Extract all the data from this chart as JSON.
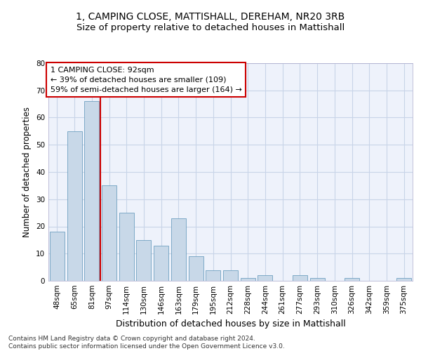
{
  "title": "1, CAMPING CLOSE, MATTISHALL, DEREHAM, NR20 3RB",
  "subtitle": "Size of property relative to detached houses in Mattishall",
  "xlabel": "Distribution of detached houses by size in Mattishall",
  "ylabel": "Number of detached properties",
  "categories": [
    "48sqm",
    "65sqm",
    "81sqm",
    "97sqm",
    "114sqm",
    "130sqm",
    "146sqm",
    "163sqm",
    "179sqm",
    "195sqm",
    "212sqm",
    "228sqm",
    "244sqm",
    "261sqm",
    "277sqm",
    "293sqm",
    "310sqm",
    "326sqm",
    "342sqm",
    "359sqm",
    "375sqm"
  ],
  "values": [
    18,
    55,
    66,
    35,
    25,
    15,
    13,
    23,
    9,
    4,
    4,
    1,
    2,
    0,
    2,
    1,
    0,
    1,
    0,
    0,
    1
  ],
  "bar_color": "#c8d8e8",
  "bar_edge_color": "#6fa0c0",
  "vline_x": 2.5,
  "vline_color": "#cc0000",
  "annotation_line1": "1 CAMPING CLOSE: 92sqm",
  "annotation_line2": "← 39% of detached houses are smaller (109)",
  "annotation_line3": "59% of semi-detached houses are larger (164) →",
  "annotation_box_color": "#cc0000",
  "ylim": [
    0,
    80
  ],
  "yticks": [
    0,
    10,
    20,
    30,
    40,
    50,
    60,
    70,
    80
  ],
  "grid_color": "#c8d4e8",
  "background_color": "#eef2fb",
  "footer_text": "Contains HM Land Registry data © Crown copyright and database right 2024.\nContains public sector information licensed under the Open Government Licence v3.0.",
  "title_fontsize": 10,
  "subtitle_fontsize": 9.5,
  "xlabel_fontsize": 9,
  "ylabel_fontsize": 8.5,
  "tick_fontsize": 7.5,
  "annotation_fontsize": 8,
  "footer_fontsize": 6.5
}
